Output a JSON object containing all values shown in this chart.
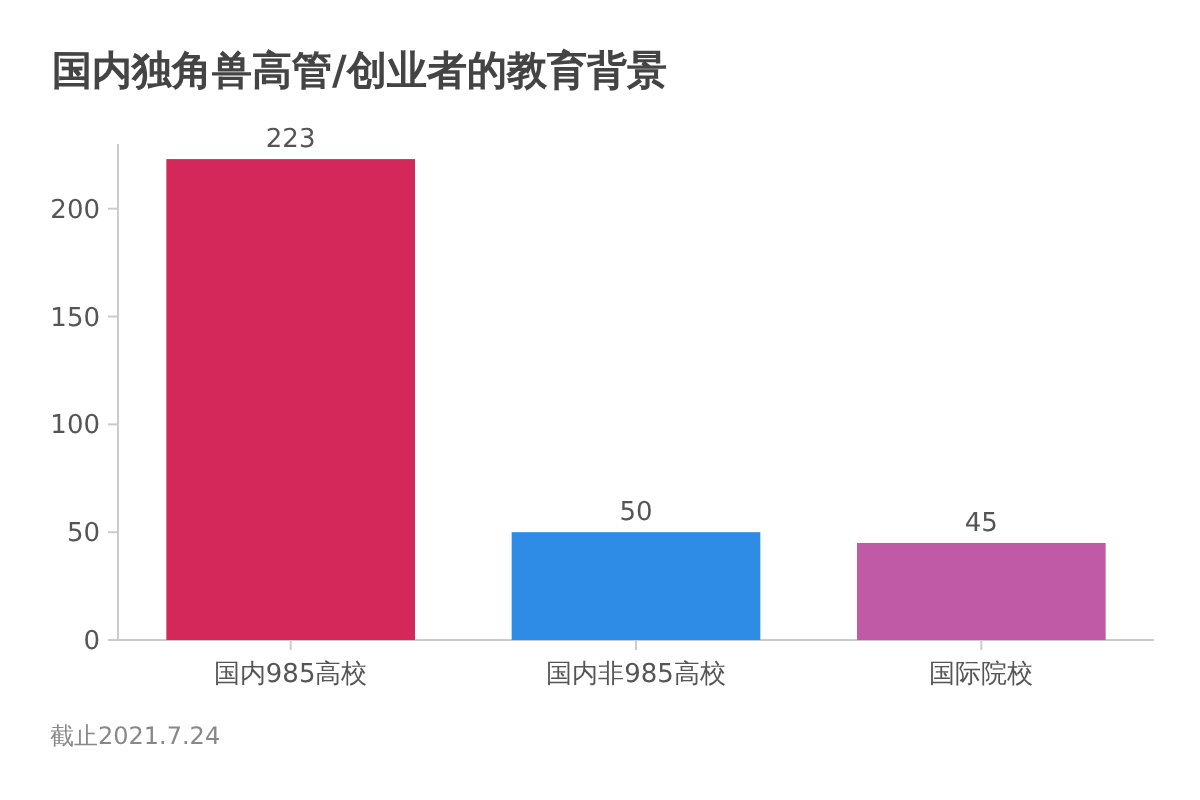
{
  "chart_data": {
    "type": "bar",
    "title": "国内独角兽高管/创业者的教育背景",
    "categories": [
      "国内985高校",
      "国内非985高校",
      "国际院校"
    ],
    "values": [
      223,
      50,
      45
    ],
    "colors": [
      "#d4285a",
      "#2e8be6",
      "#c05aa6"
    ],
    "ylim": [
      0,
      230
    ],
    "yticks": [
      0,
      50,
      100,
      150,
      200
    ],
    "data_labels": true,
    "annotations": [
      "截止2021.7.24"
    ]
  }
}
